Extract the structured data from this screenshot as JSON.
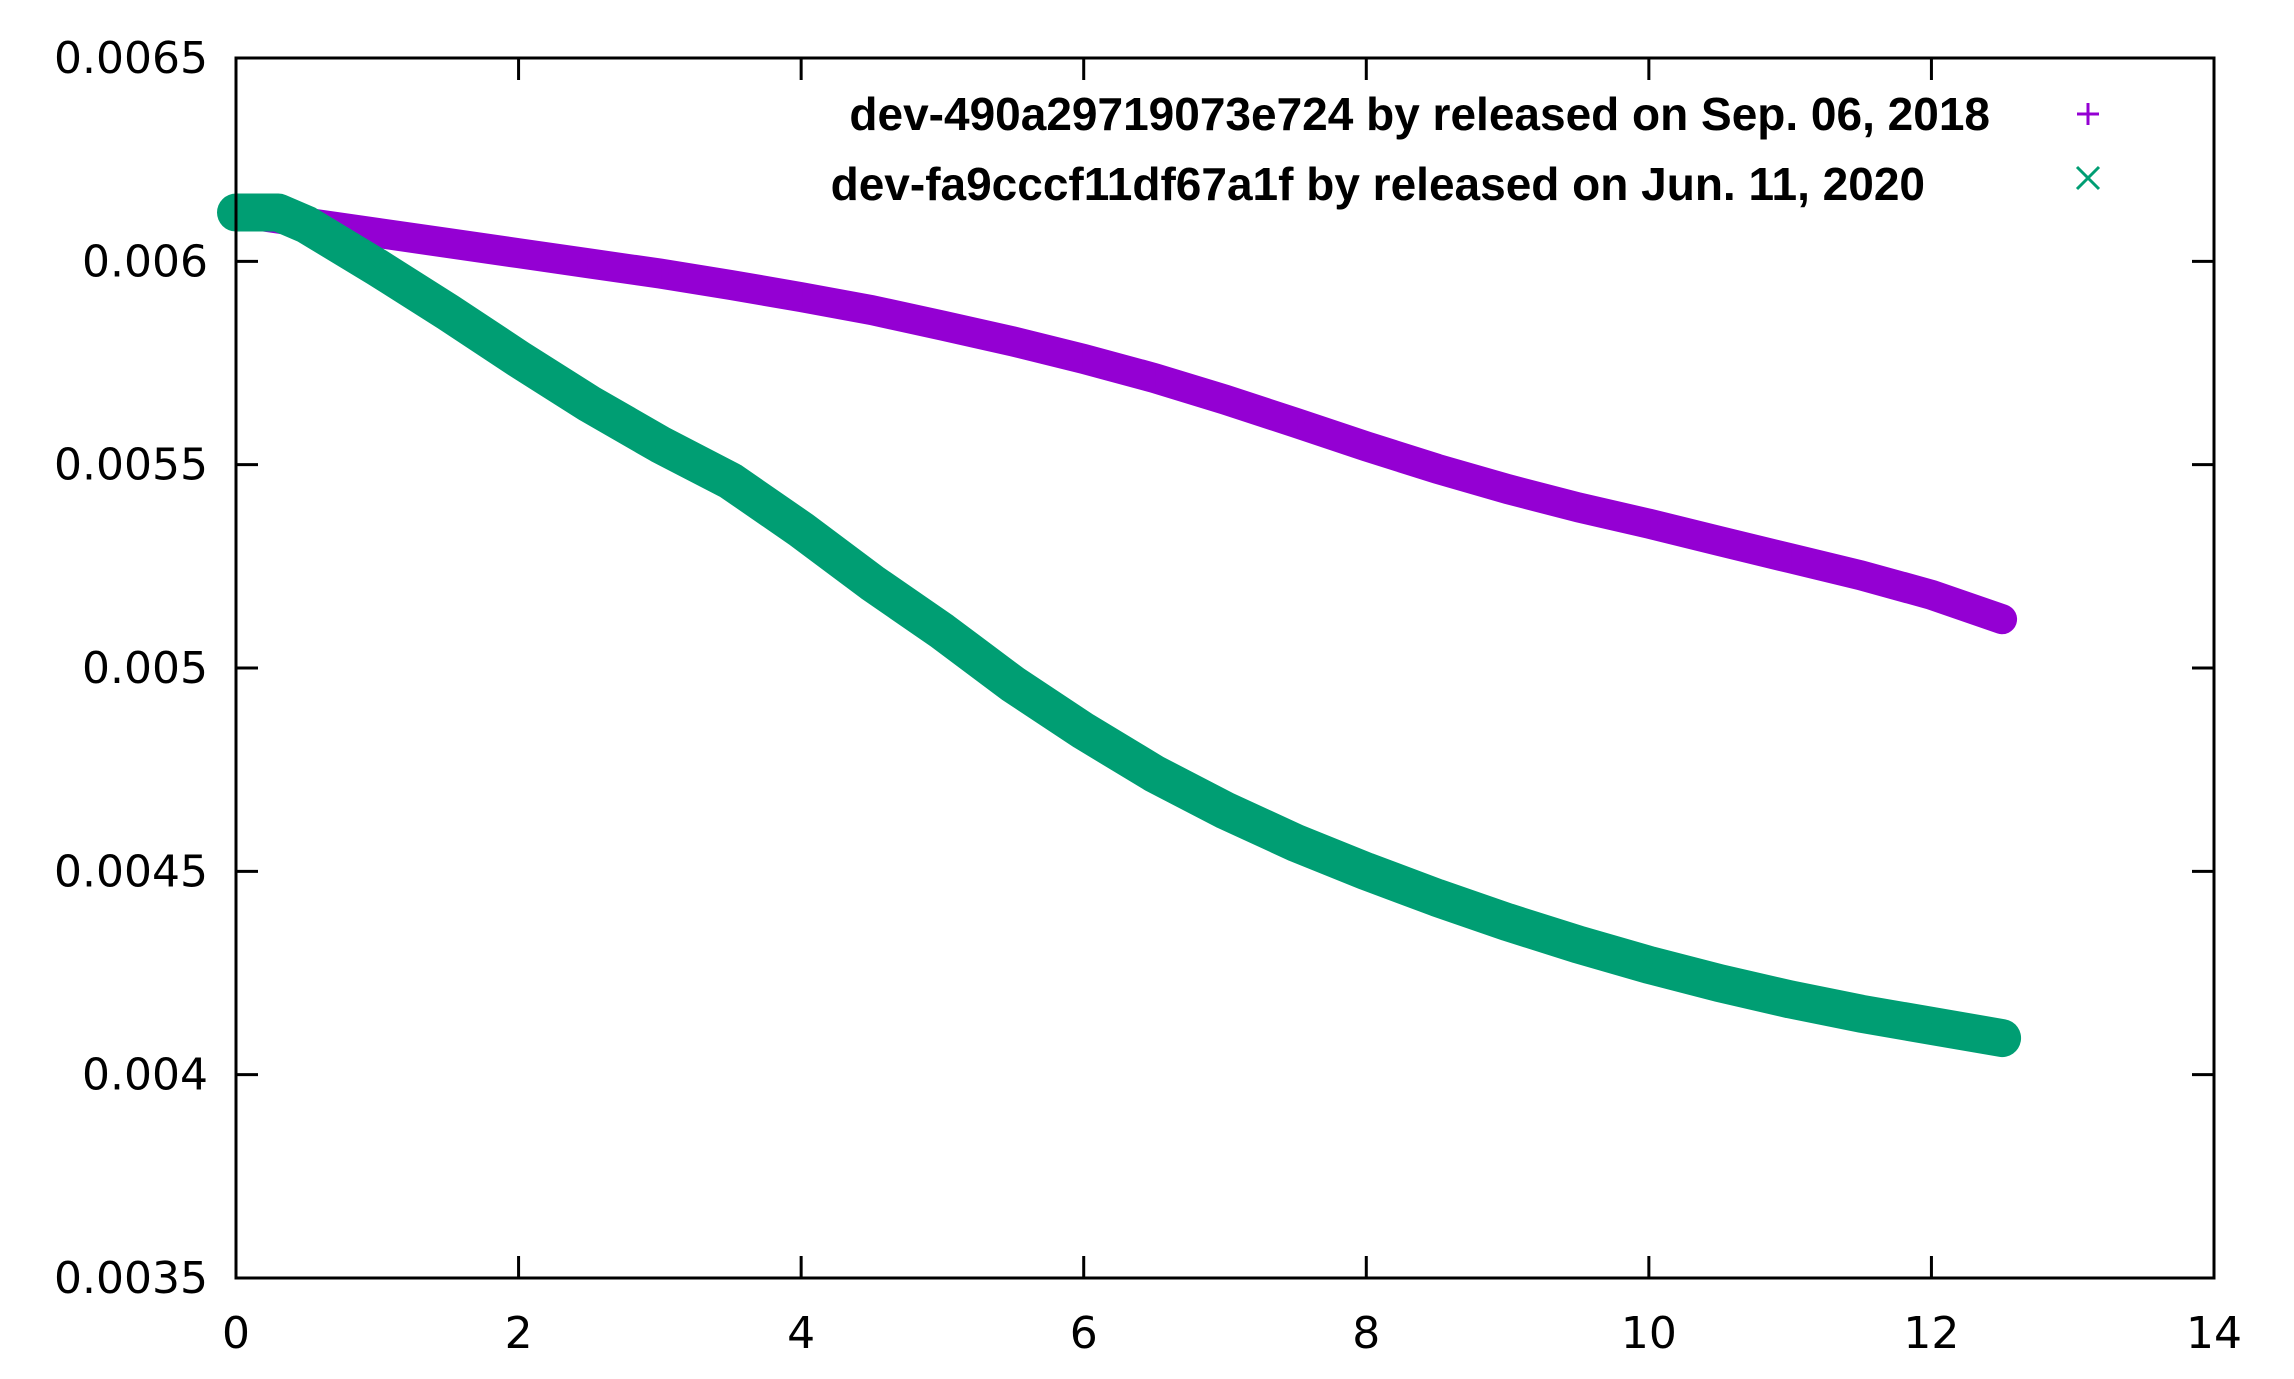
{
  "chart_data": {
    "type": "scatter",
    "title": "",
    "xlabel": "",
    "ylabel": "",
    "xlim": [
      0,
      14
    ],
    "ylim": [
      0.0035,
      0.0065
    ],
    "x_ticks": [
      0,
      2,
      4,
      6,
      8,
      10,
      12,
      14
    ],
    "x_tick_labels": [
      "0",
      "2",
      "4",
      "6",
      "8",
      "10",
      "12",
      "14"
    ],
    "y_ticks": [
      0.0035,
      0.004,
      0.0045,
      0.005,
      0.0055,
      0.006,
      0.0065
    ],
    "y_tick_labels": [
      "0.0035",
      "0.004",
      "0.0045",
      "0.005",
      "0.0055",
      "0.006",
      "0.0065"
    ],
    "grid": false,
    "legend_position": "top-right",
    "series": [
      {
        "name": "dev-490a29719073e724  by released on Sep. 06, 2018",
        "marker": "plus",
        "color": "#9400d3",
        "x": [
          0,
          0.5,
          1,
          1.5,
          2,
          2.5,
          3,
          3.5,
          4,
          4.5,
          5,
          5.5,
          6,
          6.5,
          7,
          7.5,
          8,
          8.5,
          9,
          9.5,
          10,
          10.5,
          11,
          11.5,
          12,
          12.5
        ],
        "y": [
          0.00612,
          0.006095,
          0.00607,
          0.006045,
          0.00602,
          0.005995,
          0.00597,
          0.005942,
          0.005912,
          0.00588,
          0.005842,
          0.005803,
          0.00576,
          0.005713,
          0.00566,
          0.005603,
          0.005545,
          0.00549,
          0.00544,
          0.005395,
          0.005355,
          0.005312,
          0.00527,
          0.005228,
          0.00518,
          0.00512
        ]
      },
      {
        "name": "dev-fa9cccf11df67a1f by released on Jun. 11, 2020",
        "marker": "x",
        "color": "#009e73",
        "x": [
          0,
          0.3,
          0.5,
          1,
          1.5,
          2,
          2.5,
          3,
          3.5,
          4,
          4.5,
          5,
          5.5,
          6,
          6.5,
          7,
          7.5,
          8,
          8.5,
          9,
          9.5,
          10,
          10.5,
          11,
          11.5,
          12,
          12.5
        ],
        "y": [
          0.00612,
          0.00612,
          0.00609,
          0.005985,
          0.005875,
          0.00576,
          0.00565,
          0.00555,
          0.00546,
          0.00534,
          0.00521,
          0.00509,
          0.00496,
          0.004845,
          0.00474,
          0.00465,
          0.00457,
          0.0045,
          0.004435,
          0.004375,
          0.00432,
          0.00427,
          0.004225,
          0.004185,
          0.00415,
          0.00412,
          0.00409
        ]
      }
    ]
  }
}
